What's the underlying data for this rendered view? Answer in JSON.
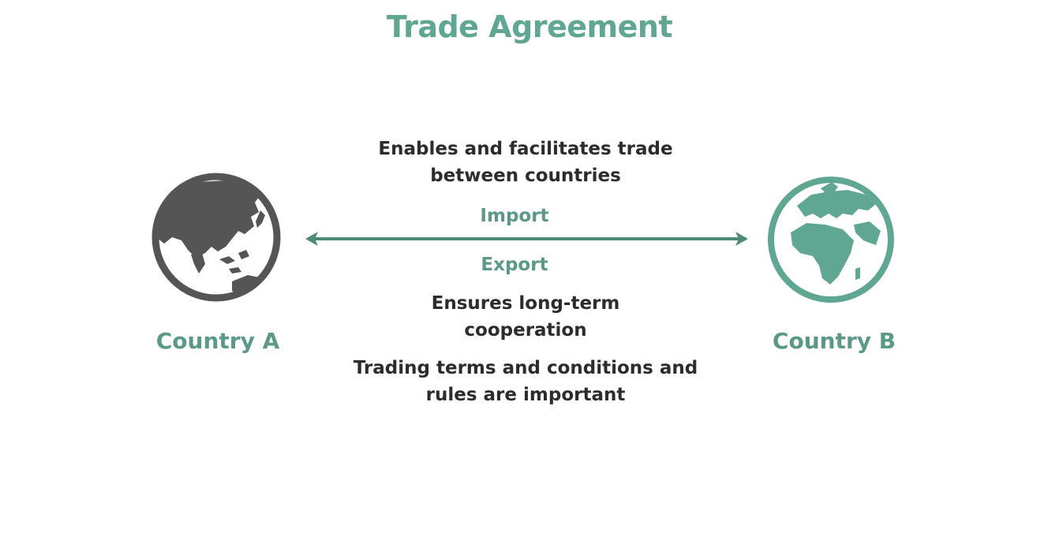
{
  "title": "Trade Agreement",
  "country_a": {
    "label": "Country A",
    "icon": "globe-asia-icon",
    "color": "#555555"
  },
  "country_b": {
    "label": "Country B",
    "icon": "globe-africa-icon",
    "color": "#5fa792"
  },
  "relationship": {
    "top_text": "Enables and facilitates trade between countries",
    "import_label": "Import",
    "export_label": "Export",
    "middle_text": "Ensures long-term cooperation",
    "bottom_text": "Trading terms and conditions and rules are important",
    "arrow_color": "#4e8a78",
    "arrow_icon": "double-headed-arrow-icon"
  }
}
